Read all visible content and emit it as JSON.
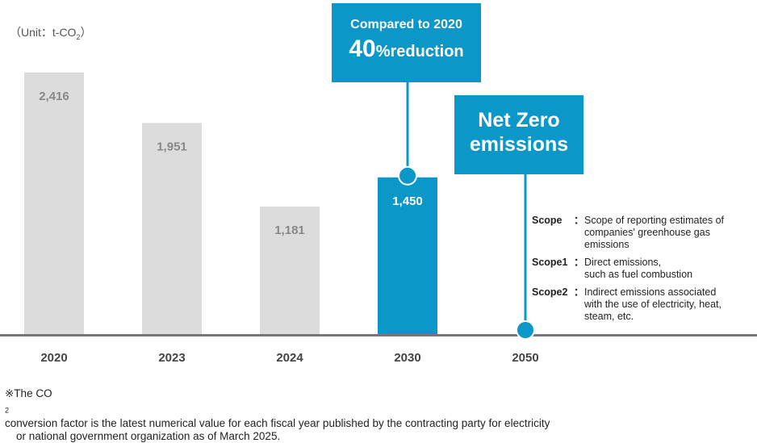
{
  "chart_data": {
    "type": "bar",
    "categories": [
      "2020",
      "2023",
      "2024",
      "2030",
      "2050"
    ],
    "values": [
      2416,
      1951,
      1181,
      1450,
      0
    ],
    "value_labels": [
      "2,416",
      "1,951",
      "1,181",
      "1,450",
      ""
    ],
    "highlight_category": "2030",
    "unit": "（Unit：t-CO2）",
    "ylim": [
      0,
      2600
    ],
    "colors": {
      "actual": "#dcdcdc",
      "target": "#0b97c8",
      "axis": "#777777"
    }
  },
  "callout_2030": {
    "line1": "Compared to 2020",
    "big": "40",
    "small": "%reduction"
  },
  "callout_2050": {
    "line1": "Net Zero",
    "line2": "emissions"
  },
  "unit_label": {
    "prefix": "（Unit：t-CO",
    "sub": "2",
    "suffix": "）"
  },
  "legend": [
    {
      "key": "Scope",
      "desc": [
        "Scope of reporting estimates of",
        "companies' greenhouse gas",
        "emissions"
      ]
    },
    {
      "key": "Scope1",
      "desc": [
        "Direct emissions,",
        "such as fuel combustion"
      ]
    },
    {
      "key": "Scope2",
      "desc": [
        "Indirect emissions associated",
        "with the use of electricity, heat,",
        "steam, etc."
      ]
    }
  ],
  "separator": "：",
  "footnote": {
    "prefix": "※The CO",
    "sub": "2",
    "line1_rest": " conversion factor is the latest numerical value for each fiscal year published by the contracting party for electricity",
    "line2": "or national government organization as of March 2025."
  }
}
